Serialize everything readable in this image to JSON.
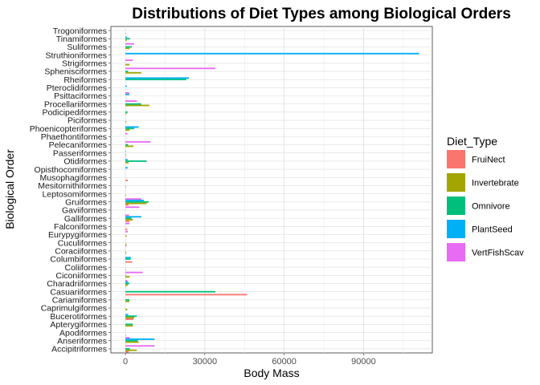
{
  "chart_data": {
    "type": "bar",
    "orientation": "horizontal",
    "title": "Distributions of Diet Types among Biological Orders",
    "xlabel": "Body Mass",
    "ylabel": "Biological Order",
    "xlim": [
      -5500,
      116000
    ],
    "xticks": [
      0,
      30000,
      60000,
      90000
    ],
    "xtick_labels": [
      "0",
      "30000",
      "60000",
      "90000"
    ],
    "grid": true,
    "legend": {
      "title": "Diet_Type",
      "placement": "right",
      "entries": [
        "FruiNect",
        "Invertebrate",
        "Omnivore",
        "PlantSeed",
        "VertFishScav"
      ]
    },
    "colors": {
      "FruiNect": "#F8766D",
      "Invertebrate": "#A3A500",
      "Omnivore": "#00BF7D",
      "PlantSeed": "#00B0F6",
      "VertFishScav": "#E76BF3"
    },
    "categories": [
      "Trogoniformes",
      "Tinamiformes",
      "Suliformes",
      "Struthioniformes",
      "Strigiformes",
      "Sphenisciformes",
      "Rheiformes",
      "Pteroclidiformes",
      "Psittaciformes",
      "Procellariiformes",
      "Podicipediformes",
      "Piciformes",
      "Phoenicopteriformes",
      "Phaethontiformes",
      "Pelecaniformes",
      "Passeriformes",
      "Otidiformes",
      "Opisthocomiformes",
      "Musophagiformes",
      "Mesitornithiformes",
      "Leptosomiformes",
      "Gruiformes",
      "Gaviiformes",
      "Galliformes",
      "Falconiformes",
      "Eurypygiformes",
      "Cuculiformes",
      "Coraciiformes",
      "Columbiformes",
      "Coliiformes",
      "Ciconiiformes",
      "Charadriiformes",
      "Casuariiformes",
      "Cariamiformes",
      "Caprimulgiformes",
      "Bucerotiformes",
      "Apterygiformes",
      "Apodiformes",
      "Anseriformes",
      "Accipitriformes"
    ],
    "series": [
      {
        "name": "FruiNect",
        "values": [
          150,
          0,
          0,
          0,
          0,
          0,
          0,
          0,
          0,
          0,
          0,
          0,
          0,
          0,
          0,
          50,
          0,
          0,
          900,
          0,
          0,
          1200,
          0,
          1600,
          700,
          0,
          450,
          200,
          2600,
          60,
          0,
          200,
          46000,
          0,
          0,
          3000,
          0,
          10,
          0,
          1200
        ]
      },
      {
        "name": "Invertebrate",
        "values": [
          0,
          500,
          1600,
          0,
          1500,
          6000,
          0,
          0,
          0,
          9000,
          400,
          300,
          1600,
          0,
          3000,
          50,
          1200,
          0,
          0,
          150,
          250,
          8000,
          0,
          2800,
          0,
          450,
          350,
          300,
          0,
          0,
          1600,
          900,
          0,
          1500,
          700,
          3300,
          2800,
          0,
          5000,
          4300
        ]
      },
      {
        "name": "Omnivore",
        "values": [
          0,
          1700,
          2400,
          0,
          0,
          1000,
          23000,
          0,
          0,
          6000,
          800,
          0,
          3300,
          0,
          1000,
          0,
          8000,
          0,
          0,
          0,
          0,
          8800,
          0,
          2300,
          0,
          0,
          0,
          0,
          2000,
          0,
          200,
          1500,
          34000,
          1500,
          0,
          4300,
          2800,
          0,
          4700,
          1700
        ]
      },
      {
        "name": "PlantSeed",
        "values": [
          0,
          500,
          0,
          111000,
          0,
          0,
          24000,
          500,
          1500,
          0,
          0,
          0,
          5000,
          0,
          0,
          200,
          800,
          800,
          0,
          0,
          0,
          7000,
          0,
          6000,
          0,
          0,
          0,
          0,
          2000,
          0,
          0,
          1000,
          0,
          0,
          0,
          1000,
          0,
          0,
          11000,
          0
        ]
      },
      {
        "name": "VertFishScav",
        "values": [
          0,
          0,
          3300,
          0,
          2800,
          34000,
          0,
          0,
          1400,
          4400,
          0,
          0,
          0,
          700,
          9500,
          0,
          0,
          0,
          0,
          0,
          0,
          6000,
          5200,
          1400,
          1500,
          900,
          0,
          0,
          0,
          0,
          6500,
          600,
          0,
          0,
          0,
          0,
          0,
          0,
          1600,
          11000
        ]
      }
    ]
  }
}
